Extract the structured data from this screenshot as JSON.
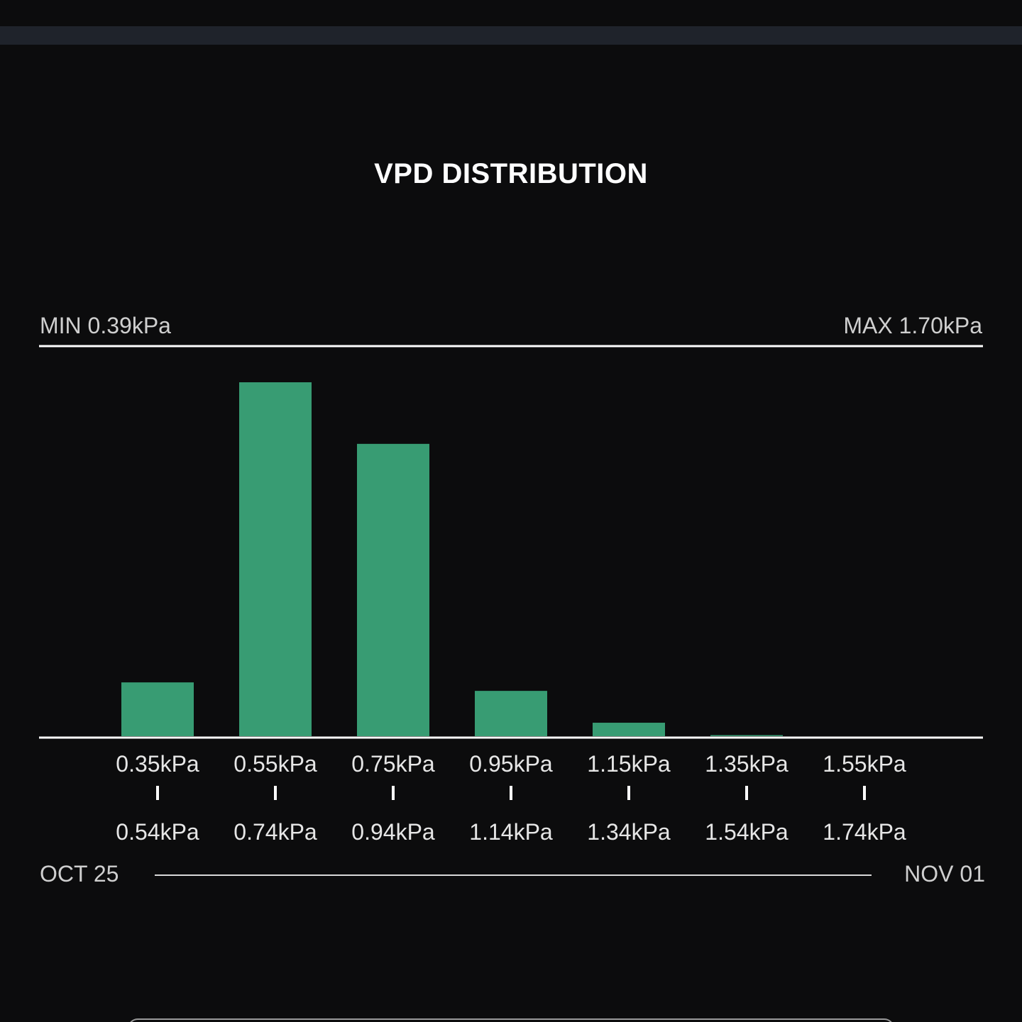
{
  "chart_data": {
    "type": "bar",
    "title": "VPD DISTRIBUTION",
    "range": {
      "min_label": "MIN 0.39kPa",
      "max_label": "MAX 1.70kPa"
    },
    "categories": [
      {
        "from": "0.35kPa",
        "to": "0.54kPa"
      },
      {
        "from": "0.55kPa",
        "to": "0.74kPa"
      },
      {
        "from": "0.75kPa",
        "to": "0.94kPa"
      },
      {
        "from": "0.95kPa",
        "to": "1.14kPa"
      },
      {
        "from": "1.15kPa",
        "to": "1.34kPa"
      },
      {
        "from": "1.35kPa",
        "to": "1.54kPa"
      },
      {
        "from": "1.55kPa",
        "to": "1.74kPa"
      }
    ],
    "values": [
      15.2,
      100,
      82.6,
      12.8,
      3.8,
      0.3,
      0
    ],
    "ylim": [
      0,
      100
    ],
    "grid": false,
    "legend": "none",
    "bar_color": "#389c73",
    "date_range": {
      "start": "OCT 25",
      "end": "NOV 01"
    }
  }
}
